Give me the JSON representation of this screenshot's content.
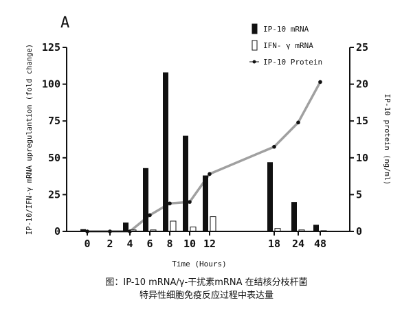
{
  "chart_data": {
    "type": "bar",
    "panel_label": "A",
    "categories": [
      "0",
      "2",
      "4",
      "6",
      "8",
      "10",
      "12",
      "18",
      "24",
      "48"
    ],
    "xlabel": "Time (Hours)",
    "ylabel": "IP-10/IFN-γ mRNA upregulantion (fold change)",
    "y2label": "IP-10 protein (ng/ml)",
    "ylim": [
      0,
      125
    ],
    "yticks": [
      0,
      25,
      50,
      75,
      100,
      125
    ],
    "y2lim": [
      0,
      25
    ],
    "y2ticks": [
      0,
      5,
      10,
      15,
      20,
      25
    ],
    "legend_position": "top-right",
    "grid": false,
    "series": [
      {
        "name": "IP-10 mRNA",
        "kind": "bar",
        "axis": "left",
        "fill": "#111111",
        "values": [
          1.5,
          null,
          6,
          43,
          108,
          65,
          38,
          47,
          20,
          4.5
        ]
      },
      {
        "name": "IFN- γ mRNA",
        "kind": "bar",
        "axis": "left",
        "fill": "#ffffff",
        "values": [
          null,
          null,
          1,
          1,
          7,
          3,
          10,
          2,
          1,
          0.5
        ]
      },
      {
        "name": "IP-10 Protein",
        "kind": "line",
        "axis": "right",
        "color": "#a0a0a0",
        "values": [
          0,
          0,
          0,
          2.2,
          3.8,
          4.0,
          7.8,
          11.5,
          14.8,
          20.3
        ]
      }
    ]
  },
  "caption": {
    "line1": "图：IP-10 mRNA/γ-干扰素mRNA 在结核分枝杆菌",
    "line2": "特异性细胞免疫反应过程中表达量"
  }
}
